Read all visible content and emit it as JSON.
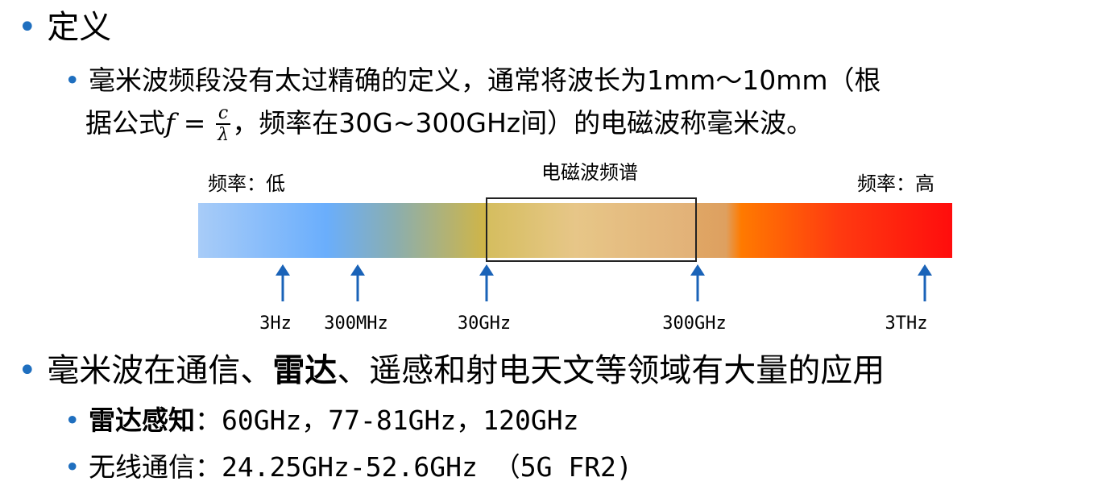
{
  "section1": {
    "bullet": "•",
    "heading": "定义",
    "sub": {
      "bullet": "•",
      "line1": "毫米波频段没有太过精确的定义，通常将波长为1mm～10mm（根",
      "line2_pre": "据公式",
      "formula_f": "f",
      "formula_eq": "=",
      "formula_num": "c",
      "formula_den": "λ",
      "line2_post": "，频率在30G~300GHz间）的电磁波称毫米波。"
    }
  },
  "spectrum": {
    "title": "电磁波频谱",
    "low_label": "频率：低",
    "high_label": "频率：高",
    "ticks": [
      "3Hz",
      "300MHz",
      "30GHz",
      "300GHz",
      "3THz"
    ],
    "colors": {
      "arrow": "#1a63b8",
      "start": "#a8ccf8",
      "mid": "#cfb548",
      "end": "#ff0d0d"
    }
  },
  "section2": {
    "bullet": "•",
    "heading_a": "毫米波在通信、",
    "heading_bold": "雷达",
    "heading_b": "、遥感和射电天文等领域有大量的应用",
    "items": [
      {
        "bullet": "•",
        "label": "雷达感知",
        "text": "：60GHz，77-81GHz，120GHz"
      },
      {
        "bullet": "•",
        "label": "无线通信",
        "text": "：24.25GHz-52.6GHz （5G FR2)"
      }
    ]
  }
}
